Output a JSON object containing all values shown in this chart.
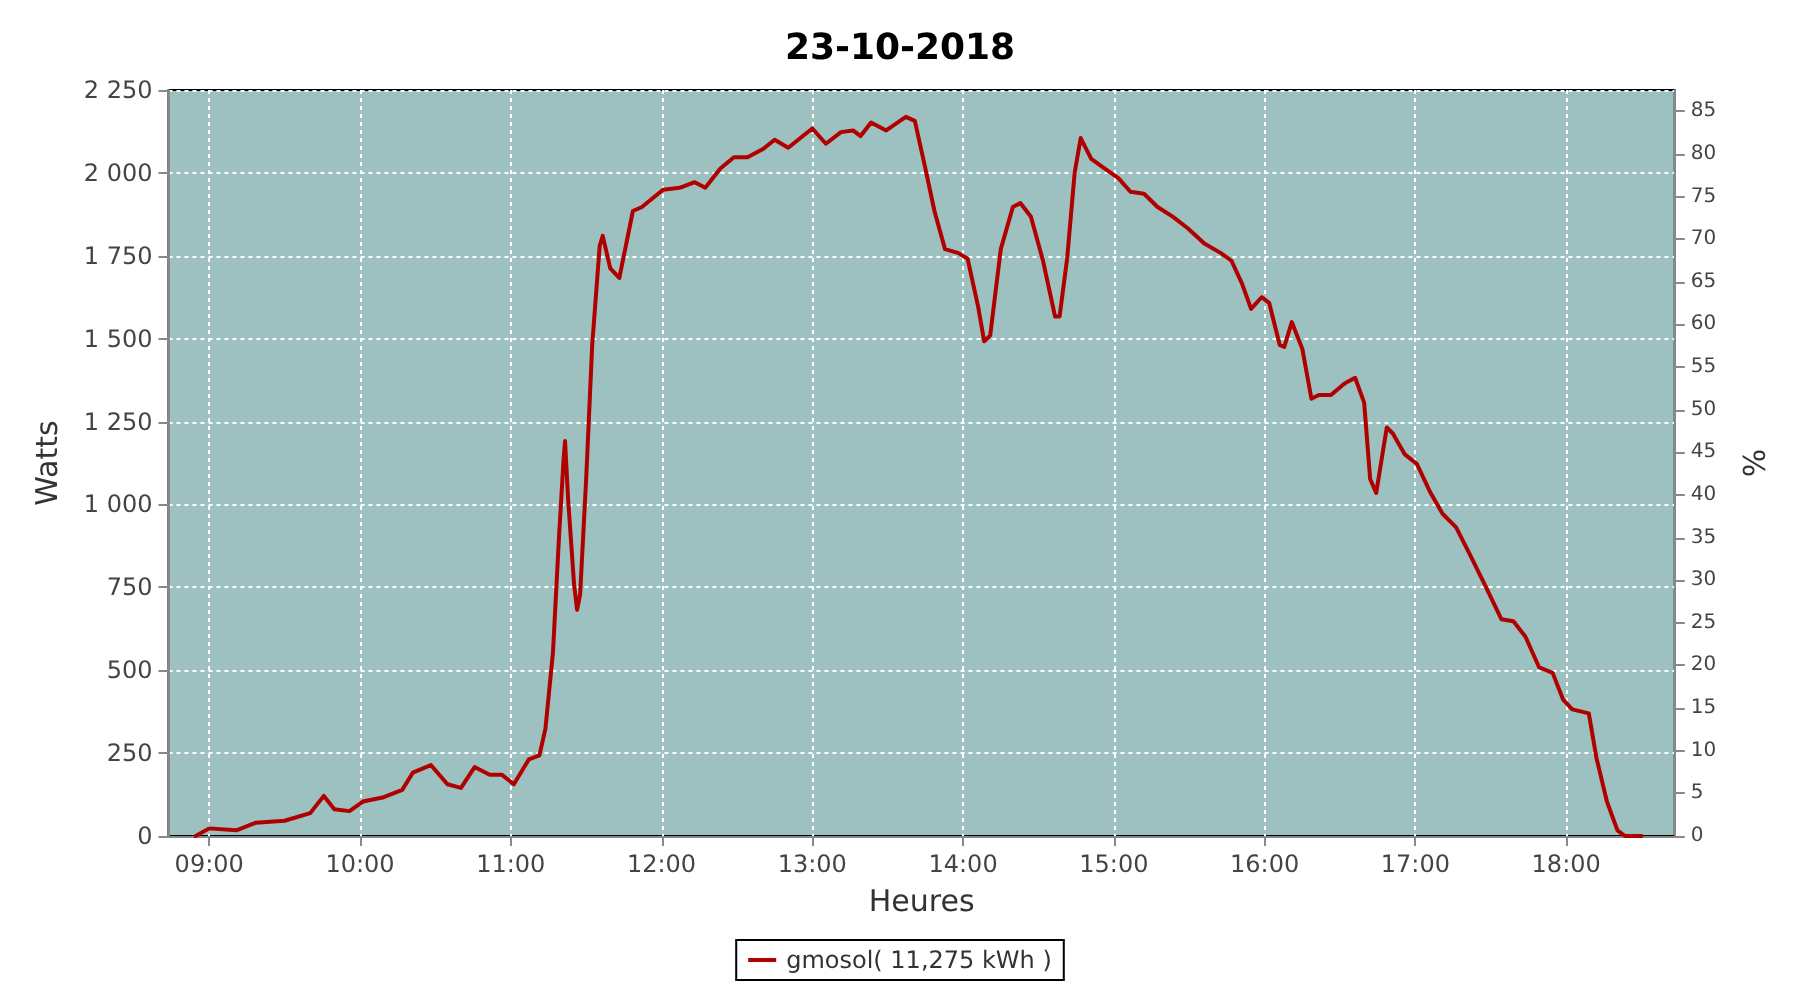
{
  "chart_data": {
    "type": "line",
    "title": "23-10-2018",
    "xlabel": "Heures",
    "ylabel": "Watts",
    "y2label": "%",
    "xlim": [
      8.73,
      18.72
    ],
    "xticks": [
      {
        "value": 9,
        "label": "09:00"
      },
      {
        "value": 10,
        "label": "10:00"
      },
      {
        "value": 11,
        "label": "11:00"
      },
      {
        "value": 12,
        "label": "12:00"
      },
      {
        "value": 13,
        "label": "13:00"
      },
      {
        "value": 14,
        "label": "14:00"
      },
      {
        "value": 15,
        "label": "15:00"
      },
      {
        "value": 16,
        "label": "16:00"
      },
      {
        "value": 17,
        "label": "17:00"
      },
      {
        "value": 18,
        "label": "18:00"
      }
    ],
    "ylim": [
      0,
      2250
    ],
    "yticks": [
      0,
      250,
      500,
      750,
      {
        "value": 1000,
        "label": "1 000"
      },
      {
        "value": 1250,
        "label": "1 250"
      },
      {
        "value": 1500,
        "label": "1 500"
      },
      {
        "value": 1750,
        "label": "1 750"
      },
      {
        "value": 2000,
        "label": "2 000"
      },
      {
        "value": 2250,
        "label": "2 250"
      }
    ],
    "y2lim": [
      0,
      87.5
    ],
    "y2ticks": [
      0,
      5,
      10,
      15,
      20,
      25,
      30,
      35,
      40,
      45,
      50,
      55,
      60,
      65,
      70,
      75,
      80,
      85
    ],
    "grid": true,
    "legend": "bottom",
    "marker": "none",
    "line_style": "solid",
    "series": [
      {
        "name": "gmosol( 11,275 kWh )",
        "color": "#b00000",
        "x": [
          8.91,
          9.0,
          9.18,
          9.31,
          9.5,
          9.67,
          9.76,
          9.83,
          9.93,
          10.02,
          10.15,
          10.28,
          10.35,
          10.47,
          10.58,
          10.67,
          10.76,
          10.86,
          10.94,
          11.02,
          11.12,
          11.19,
          11.23,
          11.28,
          11.32,
          11.35,
          11.36,
          11.38,
          11.42,
          11.44,
          11.46,
          11.5,
          11.54,
          11.59,
          11.61,
          11.66,
          11.72,
          11.81,
          11.87,
          12.01,
          12.12,
          12.22,
          12.29,
          12.39,
          12.48,
          12.57,
          12.67,
          12.75,
          12.84,
          13.0,
          13.09,
          13.19,
          13.27,
          13.32,
          13.39,
          13.49,
          13.62,
          13.68,
          13.75,
          13.81,
          13.88,
          13.97,
          14.03,
          14.1,
          14.14,
          14.18,
          14.25,
          14.33,
          14.38,
          14.45,
          14.53,
          14.61,
          14.64,
          14.69,
          14.74,
          14.78,
          14.85,
          14.94,
          15.03,
          15.11,
          15.2,
          15.29,
          15.39,
          15.49,
          15.6,
          15.71,
          15.78,
          15.85,
          15.91,
          15.98,
          16.03,
          16.1,
          16.13,
          16.18,
          16.25,
          16.31,
          16.36,
          16.44,
          16.53,
          16.6,
          16.66,
          16.7,
          16.74,
          16.81,
          16.85,
          16.93,
          17.01,
          17.1,
          17.18,
          17.27,
          17.36,
          17.46,
          17.57,
          17.65,
          17.73,
          17.82,
          17.91,
          17.98,
          18.04,
          18.15,
          18.2,
          18.27,
          18.34,
          18.39,
          18.5
        ],
        "values": [
          0,
          23,
          17,
          40,
          46,
          69,
          121,
          81,
          75,
          104,
          116,
          139,
          191,
          214,
          156,
          145,
          208,
          185,
          185,
          156,
          231,
          243,
          324,
          555,
          902,
          1134,
          1191,
          1018,
          758,
          682,
          729,
          1076,
          1480,
          1781,
          1810,
          1712,
          1683,
          1885,
          1897,
          1949,
          1955,
          1972,
          1955,
          2013,
          2047,
          2047,
          2071,
          2100,
          2076,
          2134,
          2088,
          2123,
          2128,
          2111,
          2152,
          2128,
          2169,
          2157,
          2013,
          1885,
          1770,
          1758,
          1741,
          1596,
          1492,
          1510,
          1770,
          1897,
          1909,
          1868,
          1735,
          1567,
          1567,
          1741,
          2001,
          2105,
          2042,
          2013,
          1984,
          1943,
          1937,
          1897,
          1868,
          1833,
          1787,
          1758,
          1735,
          1666,
          1590,
          1625,
          1608,
          1481,
          1475,
          1550,
          1469,
          1319,
          1330,
          1330,
          1365,
          1382,
          1307,
          1076,
          1035,
          1232,
          1214,
          1151,
          1122,
          1035,
          972,
          931,
          850,
          758,
          654,
          648,
          601,
          509,
          492,
          411,
          382,
          370,
          237,
          104,
          17,
          0,
          0
        ]
      }
    ]
  }
}
